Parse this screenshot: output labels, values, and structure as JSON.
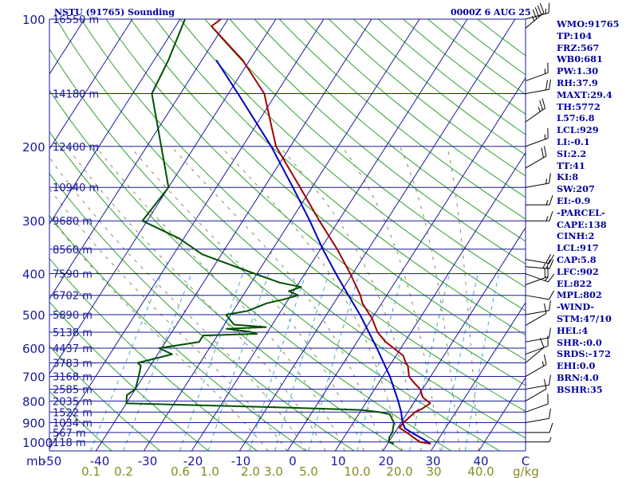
{
  "header": {
    "station_title": "NSTU (91765) Sounding",
    "obs_time": "0000Z  6 AUG 25"
  },
  "indices": [
    "WMO:91765",
    "TP:104",
    "FRZ:567",
    "WB0:681",
    "PW:1.30",
    "RH:37.9",
    "MAXT:29.4",
    "TH:5772",
    "L57:6.8",
    "LCL:929",
    "LI:-0.1",
    "SI:2.2",
    "TT:41",
    "KI:8",
    "SW:207",
    "EI:-0.9",
    "-PARCEL-",
    "CAPE:138",
    "CINH:2",
    "LCL:917",
    "CAP:5.8",
    "LFC:902",
    "EL:822",
    "MPL:802",
    "-WIND-",
    "STM:47/10",
    "HEL:4",
    "SHR-:0.0",
    "SRDS:-172",
    "EHI:0.0",
    "BRN:4.0",
    "BSHR:35"
  ],
  "colors": {
    "isobar": "#1a1a9a",
    "isotherm": "#1a1a9a",
    "dry_adiabat": "#2ea02e",
    "moist_adiabat": "#8a8a5a",
    "mixing_ratio": "#40a8d8",
    "temperature": "#a00000",
    "dewpoint": "#005000",
    "parcel": "#0000c0",
    "label_text": "#1a1a9a",
    "mixing_label": "#8a8a22",
    "wind_barb": "#000000"
  },
  "chart_data": {
    "type": "skew-t",
    "pressure_axis_label": "mb",
    "pressure_ticks": [
      100,
      200,
      300,
      400,
      500,
      600,
      700,
      800,
      900,
      1000
    ],
    "temperature_ticks": [
      "-50",
      "-40",
      "-30",
      "-20",
      "-10",
      "0",
      "10",
      "20",
      "30",
      "40",
      "C"
    ],
    "mixing_ratio_labels": [
      "0.1",
      "0.2",
      "0.6",
      "1.0",
      "2.0",
      "3.0",
      "5.0",
      "10.0",
      "20.0",
      "30",
      "40.0"
    ],
    "mixing_ratio_unit": "g/kg",
    "heights": [
      {
        "p": 100,
        "label": "16550 m"
      },
      {
        "p": 150,
        "label": "14180 m"
      },
      {
        "p": 200,
        "label": "12400 m"
      },
      {
        "p": 250,
        "label": "10940 m"
      },
      {
        "p": 300,
        "label": "9680 m"
      },
      {
        "p": 350,
        "label": "8560 m"
      },
      {
        "p": 400,
        "label": "7590 m"
      },
      {
        "p": 450,
        "label": "6702 m"
      },
      {
        "p": 500,
        "label": "5890 m"
      },
      {
        "p": 550,
        "label": "5138 m"
      },
      {
        "p": 600,
        "label": "4437 m"
      },
      {
        "p": 650,
        "label": "3783 m"
      },
      {
        "p": 700,
        "label": "3168 m"
      },
      {
        "p": 750,
        "label": "2585 m"
      },
      {
        "p": 800,
        "label": "2035 m"
      },
      {
        "p": 850,
        "label": "1522 m"
      },
      {
        "p": 900,
        "label": "1034 m"
      },
      {
        "p": 950,
        "label": "567 m"
      },
      {
        "p": 1000,
        "label": "118 m"
      }
    ],
    "temperature": [
      {
        "p": 1010,
        "t": 29.0
      },
      {
        "p": 1000,
        "t": 26.5
      },
      {
        "p": 975,
        "t": 24.5
      },
      {
        "p": 950,
        "t": 22.5
      },
      {
        "p": 925,
        "t": 20.3
      },
      {
        "p": 900,
        "t": 20.5
      },
      {
        "p": 875,
        "t": 21.0
      },
      {
        "p": 850,
        "t": 21.5
      },
      {
        "p": 835,
        "t": 22.5
      },
      {
        "p": 810,
        "t": 23.5
      },
      {
        "p": 785,
        "t": 21.2
      },
      {
        "p": 750,
        "t": 19.5
      },
      {
        "p": 720,
        "t": 17.0
      },
      {
        "p": 700,
        "t": 15.5
      },
      {
        "p": 660,
        "t": 13.8
      },
      {
        "p": 650,
        "t": 13.0
      },
      {
        "p": 625,
        "t": 11.5
      },
      {
        "p": 600,
        "t": 8.5
      },
      {
        "p": 580,
        "t": 6.0
      },
      {
        "p": 550,
        "t": 3.0
      },
      {
        "p": 510,
        "t": 0.0
      },
      {
        "p": 500,
        "t": -1.0
      },
      {
        "p": 470,
        "t": -4.0
      },
      {
        "p": 450,
        "t": -5.5
      },
      {
        "p": 400,
        "t": -10.5
      },
      {
        "p": 350,
        "t": -16.5
      },
      {
        "p": 300,
        "t": -24.0
      },
      {
        "p": 250,
        "t": -32.5
      },
      {
        "p": 200,
        "t": -43.0
      },
      {
        "p": 180,
        "t": -46.5
      },
      {
        "p": 150,
        "t": -52.5
      },
      {
        "p": 125,
        "t": -61.5
      },
      {
        "p": 104,
        "t": -72.5
      },
      {
        "p": 100,
        "t": -71.5
      }
    ],
    "dewpoint": [
      {
        "p": 1010,
        "t": 21.3
      },
      {
        "p": 1000,
        "t": 20.0
      },
      {
        "p": 975,
        "t": 19.5
      },
      {
        "p": 950,
        "t": 19.5
      },
      {
        "p": 925,
        "t": 19.0
      },
      {
        "p": 900,
        "t": 18.5
      },
      {
        "p": 880,
        "t": 17.5
      },
      {
        "p": 860,
        "t": 16.5
      },
      {
        "p": 850,
        "t": 14.0
      },
      {
        "p": 840,
        "t": 10.0
      },
      {
        "p": 830,
        "t": -5.0
      },
      {
        "p": 810,
        "t": -40.0
      },
      {
        "p": 775,
        "t": -41.0
      },
      {
        "p": 750,
        "t": -40.0
      },
      {
        "p": 700,
        "t": -41.0
      },
      {
        "p": 660,
        "t": -42.0
      },
      {
        "p": 650,
        "t": -43.0
      },
      {
        "p": 620,
        "t": -37.0
      },
      {
        "p": 600,
        "t": -40.5
      },
      {
        "p": 580,
        "t": -33.0
      },
      {
        "p": 560,
        "t": -33.0
      },
      {
        "p": 555,
        "t": -22.0
      },
      {
        "p": 548,
        "t": -24.0
      },
      {
        "p": 540,
        "t": -29.0
      },
      {
        "p": 535,
        "t": -21.0
      },
      {
        "p": 528,
        "t": -28.0
      },
      {
        "p": 500,
        "t": -31.0
      },
      {
        "p": 490,
        "t": -27.0
      },
      {
        "p": 470,
        "t": -24.0
      },
      {
        "p": 460,
        "t": -21.0
      },
      {
        "p": 450,
        "t": -18.5
      },
      {
        "p": 440,
        "t": -21.0
      },
      {
        "p": 430,
        "t": -19.0
      },
      {
        "p": 420,
        "t": -24.0
      },
      {
        "p": 400,
        "t": -30.5
      },
      {
        "p": 360,
        "t": -44.0
      },
      {
        "p": 330,
        "t": -51.0
      },
      {
        "p": 300,
        "t": -61.0
      },
      {
        "p": 250,
        "t": -60.0
      },
      {
        "p": 220,
        "t": -64.0
      },
      {
        "p": 150,
        "t": -76.0
      },
      {
        "p": 125,
        "t": -77.0
      },
      {
        "p": 100,
        "t": -79.0
      }
    ],
    "parcel": [
      {
        "p": 1010,
        "t": 29.0
      },
      {
        "p": 1000,
        "t": 28.2
      },
      {
        "p": 950,
        "t": 23.5
      },
      {
        "p": 929,
        "t": 21.6
      },
      {
        "p": 900,
        "t": 20.3
      },
      {
        "p": 850,
        "t": 18.6
      },
      {
        "p": 800,
        "t": 16.5
      },
      {
        "p": 700,
        "t": 11.5
      },
      {
        "p": 600,
        "t": 5.0
      },
      {
        "p": 500,
        "t": -3.0
      },
      {
        "p": 450,
        "t": -8.0
      },
      {
        "p": 400,
        "t": -13.5
      },
      {
        "p": 350,
        "t": -19.5
      },
      {
        "p": 300,
        "t": -26.0
      },
      {
        "p": 250,
        "t": -34.0
      },
      {
        "p": 200,
        "t": -44.0
      },
      {
        "p": 150,
        "t": -58.0
      },
      {
        "p": 125,
        "t": -67.0
      }
    ],
    "wind_barbs": [
      {
        "p": 100,
        "dir": 75,
        "spd": 15
      },
      {
        "p": 105,
        "dir": 50,
        "spd": 45
      },
      {
        "p": 140,
        "dir": 70,
        "spd": 15
      },
      {
        "p": 150,
        "dir": 80,
        "spd": 20
      },
      {
        "p": 175,
        "dir": 55,
        "spd": 25
      },
      {
        "p": 200,
        "dir": 70,
        "spd": 15
      },
      {
        "p": 225,
        "dir": 60,
        "spd": 20
      },
      {
        "p": 250,
        "dir": 80,
        "spd": 15
      },
      {
        "p": 275,
        "dir": 90,
        "spd": 15
      },
      {
        "p": 300,
        "dir": 90,
        "spd": 15
      },
      {
        "p": 370,
        "dir": 100,
        "spd": 20
      },
      {
        "p": 385,
        "dir": 95,
        "spd": 25
      },
      {
        "p": 400,
        "dir": 110,
        "spd": 15
      },
      {
        "p": 425,
        "dir": 70,
        "spd": 20
      },
      {
        "p": 450,
        "dir": 100,
        "spd": 10
      },
      {
        "p": 500,
        "dir": 80,
        "spd": 10
      },
      {
        "p": 530,
        "dir": 60,
        "spd": 10
      },
      {
        "p": 580,
        "dir": 80,
        "spd": 10
      },
      {
        "p": 620,
        "dir": 70,
        "spd": 10
      },
      {
        "p": 650,
        "dir": 50,
        "spd": 10
      },
      {
        "p": 700,
        "dir": 60,
        "spd": 15
      },
      {
        "p": 750,
        "dir": 80,
        "spd": 10
      },
      {
        "p": 800,
        "dir": 60,
        "spd": 10
      },
      {
        "p": 850,
        "dir": 70,
        "spd": 10
      },
      {
        "p": 900,
        "dir": 80,
        "spd": 10
      },
      {
        "p": 950,
        "dir": 90,
        "spd": 10
      },
      {
        "p": 1000,
        "dir": 90,
        "spd": 5
      }
    ]
  }
}
